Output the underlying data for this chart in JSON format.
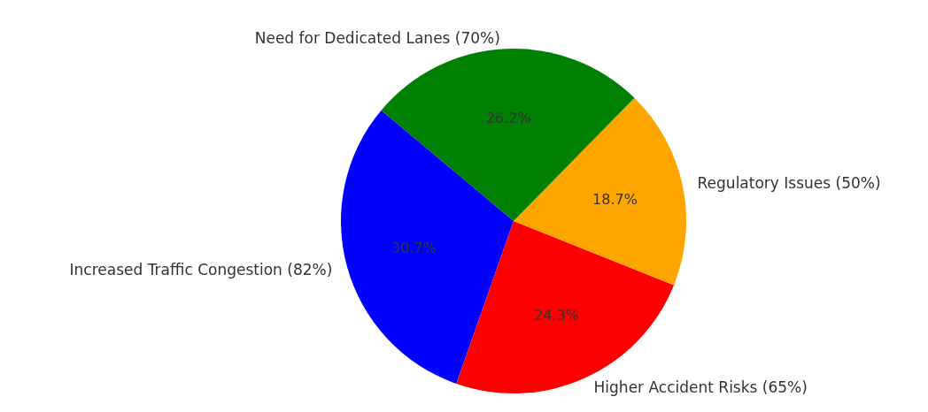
{
  "chart_data": {
    "type": "pie",
    "categories": [
      "Increased Traffic Congestion (82%)",
      "Higher Accident Risks (65%)",
      "Regulatory Issues (50%)",
      "Need for Dedicated Lanes (70%)"
    ],
    "values": [
      30.7,
      24.3,
      18.7,
      26.2
    ],
    "colors": [
      "#0000ff",
      "#ff0000",
      "#ffa500",
      "#008000"
    ],
    "value_labels": [
      "30.7%",
      "24.3%",
      "18.7%",
      "26.2%"
    ],
    "legend": false
  }
}
